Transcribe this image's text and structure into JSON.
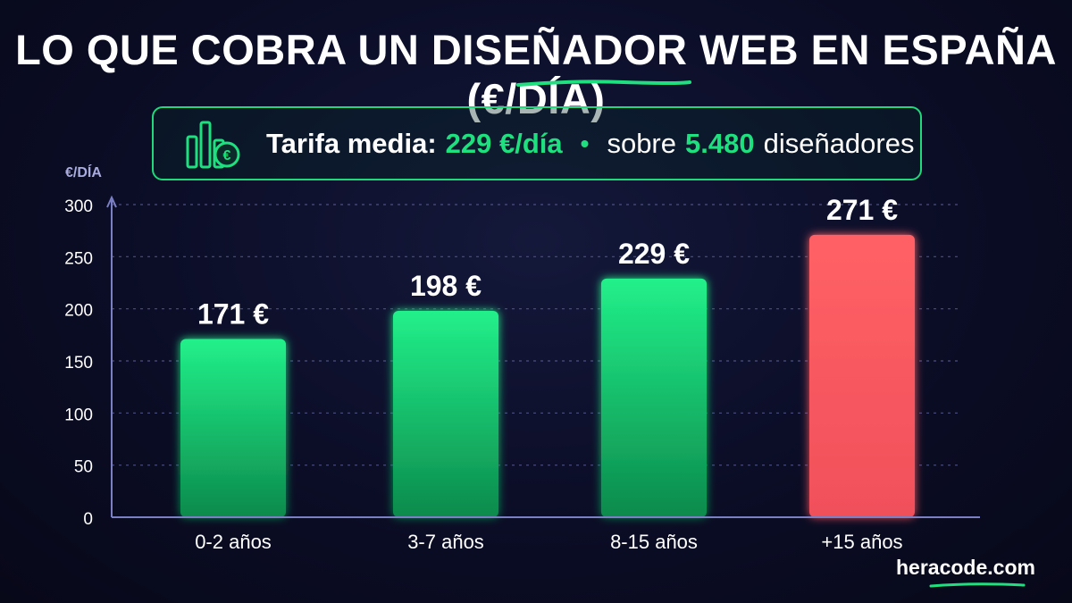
{
  "header": {
    "title": "LO QUE COBRA UN DISEÑADOR WEB EN ESPAÑA (€/DÍA)"
  },
  "summary": {
    "label": "Tarifa media:",
    "average": "229 €/día",
    "bullet": "•",
    "over": "sobre",
    "count": "5.480",
    "suffix": "diseñadores",
    "icon": "chart-euro-icon"
  },
  "brand": "heracode.com",
  "colors": {
    "background": "#0b0d26",
    "green": "#1fe07e",
    "red": "#ff5a60",
    "axis": "#7b7fc4"
  },
  "chart_data": {
    "type": "bar",
    "title": "LO QUE COBRA UN DISEÑADOR WEB EN ESPAÑA (€/DÍA)",
    "ylabel": "€/DÍA",
    "xlabel": "",
    "categories": [
      "0-2 años",
      "3-7 años",
      "8-15 años",
      "+15 años"
    ],
    "values": [
      171,
      198,
      229,
      271
    ],
    "value_labels": [
      "171 €",
      "198 €",
      "229 €",
      "271 €"
    ],
    "highlight_index": 3,
    "ylim": [
      0,
      300
    ],
    "yticks": [
      0,
      50,
      100,
      150,
      200,
      250,
      300
    ],
    "grid": true,
    "legend": "none"
  }
}
